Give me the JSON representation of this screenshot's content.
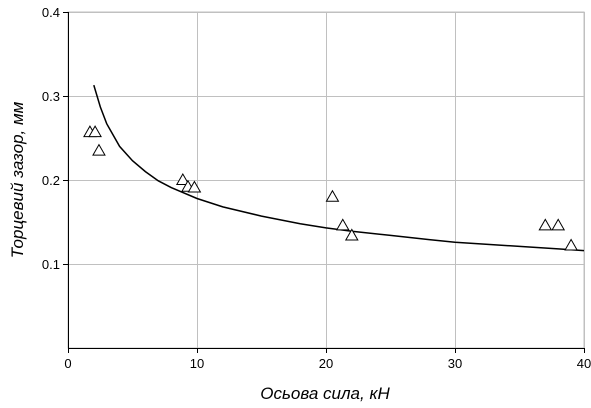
{
  "chart_data": {
    "type": "scatter",
    "title": "",
    "xlabel": "Осьова сила, кН",
    "ylabel": "Торцевий зазор, мм",
    "xlim": [
      0,
      40
    ],
    "ylim": [
      0,
      0.4
    ],
    "x_ticks": [
      {
        "value": 0,
        "label": "0"
      },
      {
        "value": 10,
        "label": "10"
      },
      {
        "value": 20,
        "label": "20"
      },
      {
        "value": 30,
        "label": "30"
      },
      {
        "value": 40,
        "label": "40"
      }
    ],
    "y_ticks": [
      {
        "value": 0.1,
        "label": "0.1"
      },
      {
        "value": 0.2,
        "label": "0.2"
      },
      {
        "value": 0.3,
        "label": "0.3"
      },
      {
        "value": 0.4,
        "label": "0.4"
      }
    ],
    "grid": true,
    "legend": "none",
    "series": [
      {
        "type": "scatter",
        "marker": "triangle",
        "x": [
          1.7,
          2.1,
          2.4,
          8.9,
          9.3,
          9.8,
          20.5,
          21.3,
          22.0,
          37.0,
          38.0,
          39.0
        ],
        "y": [
          0.257,
          0.257,
          0.235,
          0.2,
          0.192,
          0.191,
          0.18,
          0.146,
          0.134,
          0.146,
          0.146,
          0.122
        ]
      },
      {
        "type": "line",
        "style": "power-law fit",
        "x": [
          2.0,
          2.5,
          3,
          4,
          5,
          6,
          7,
          8,
          10,
          12,
          15,
          18,
          20,
          22,
          25,
          28,
          30,
          33,
          35,
          38,
          40
        ],
        "y": [
          0.313,
          0.287,
          0.267,
          0.24,
          0.223,
          0.21,
          0.199,
          0.191,
          0.178,
          0.168,
          0.157,
          0.148,
          0.143,
          0.139,
          0.134,
          0.129,
          0.126,
          0.123,
          0.121,
          0.118,
          0.116
        ]
      }
    ]
  },
  "colors": {
    "background": "#ffffff",
    "grid": "#c0c0c0",
    "axis": "#000000",
    "marker": "#000000",
    "line": "#000000"
  }
}
